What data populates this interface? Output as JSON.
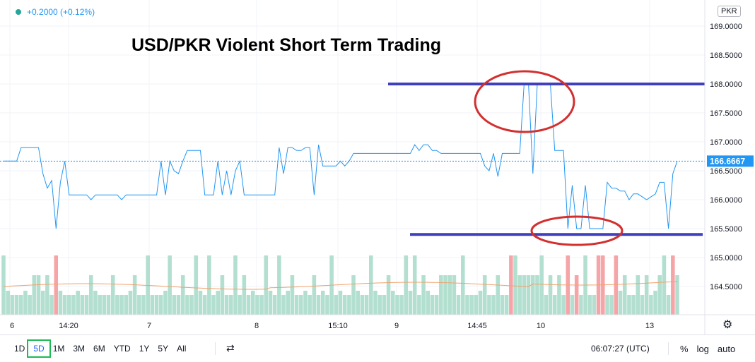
{
  "legend": {
    "change": "+0.2000 (+0.12%)"
  },
  "title": "USD/PKR Violent Short Term Trading",
  "currency": "PKR",
  "last_price": "166.6667",
  "colors": {
    "line": "#2196f3",
    "support_resistance": "#3f3fbf",
    "circle": "#d32f2f",
    "vol_up": "#b2dfcf",
    "vol_down": "#f5a5a8",
    "ma": "#f0a26a",
    "last_line": "#2196f3"
  },
  "chart_data": {
    "type": "line",
    "title": "USD/PKR Violent Short Term Trading",
    "ylim": [
      164.0,
      169.2
    ],
    "y_ticks": [
      "169.0000",
      "168.5000",
      "168.0000",
      "167.5000",
      "167.0000",
      "166.5000",
      "166.0000",
      "165.5000",
      "165.0000",
      "164.5000"
    ],
    "x_tick_labels": [
      "6",
      "14:20",
      "7",
      "8",
      "15:10",
      "9",
      "14:45",
      "10",
      "13"
    ],
    "series": [
      {
        "values": [
          166.667,
          166.667,
          166.667,
          166.667,
          166.9,
          166.9,
          166.9,
          166.9,
          166.9,
          166.45,
          166.2,
          166.33,
          165.5,
          166.3,
          166.667,
          166.083,
          166.083,
          166.083,
          166.083,
          166.083,
          166.0,
          166.083,
          166.083,
          166.083,
          166.083,
          166.083,
          166.083,
          166.0,
          166.083,
          166.083,
          166.083,
          166.083,
          166.083,
          166.083,
          166.083,
          166.083,
          166.667,
          166.083,
          166.667,
          166.5,
          166.45,
          166.667,
          166.85,
          166.85,
          166.85,
          166.85,
          166.083,
          166.083,
          166.083,
          166.667,
          166.083,
          166.5,
          166.083,
          166.5,
          166.667,
          166.083,
          166.083,
          166.083,
          166.083,
          166.083,
          166.083,
          166.083,
          166.083,
          166.9,
          166.45,
          166.9,
          166.9,
          166.85,
          166.85,
          166.9,
          166.9,
          166.083,
          166.95,
          166.583,
          166.583,
          166.583,
          166.583,
          166.667,
          166.583,
          166.667,
          166.8,
          166.8,
          166.8,
          166.8,
          166.8,
          166.8,
          166.8,
          166.8,
          166.8,
          166.8,
          166.8,
          166.8,
          166.8,
          166.8,
          166.95,
          166.85,
          166.95,
          166.95,
          166.85,
          166.85,
          166.8,
          166.8,
          166.8,
          166.8,
          166.8,
          166.8,
          166.8,
          166.8,
          166.8,
          166.8,
          166.583,
          166.5,
          166.8,
          166.4,
          166.8,
          166.8,
          166.8,
          166.8,
          166.8,
          168.0,
          168.0,
          166.45,
          168.0,
          168.0,
          168.0,
          168.0,
          166.85,
          166.85,
          166.85,
          165.5,
          166.25,
          165.5,
          165.5,
          166.25,
          165.5,
          165.5,
          165.5,
          165.5,
          166.3,
          166.2,
          166.2,
          166.15,
          166.15,
          166.0,
          166.1,
          166.1,
          166.05,
          166.0,
          166.05,
          166.1,
          166.3,
          166.3,
          165.5,
          166.45,
          166.667
        ],
        "volume_down_indices": [
          12,
          116,
          129,
          131,
          136,
          137,
          140,
          153
        ]
      }
    ]
  }
}
